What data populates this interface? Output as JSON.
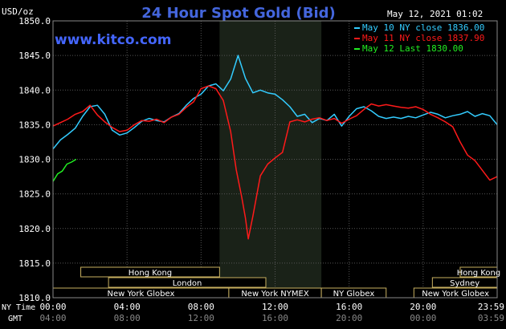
{
  "chart_data": {
    "type": "line",
    "title": "24 Hour Spot Gold (Bid)",
    "ylabel": "USD/oz",
    "watermark": "www.kitco.com",
    "timestamp": "May 12, 2021 01:02",
    "ylim": [
      1810,
      1850
    ],
    "xlim": [
      0,
      24
    ],
    "y_ticks": [
      "1850.0",
      "1845.0",
      "1840.0",
      "1835.0",
      "1830.0",
      "1825.0",
      "1820.0",
      "1815.0",
      "1810.0"
    ],
    "y_tick_values": [
      1850,
      1845,
      1840,
      1835,
      1830,
      1825,
      1820,
      1815,
      1810
    ],
    "x_row1_label": "NY Time",
    "x_row2_label": "GMT",
    "x_ticks_ny": [
      "00:00",
      "04:00",
      "08:00",
      "12:00",
      "16:00",
      "20:00",
      "23:59"
    ],
    "x_ticks_gmt": [
      "04:00",
      "08:00",
      "12:00",
      "16:00",
      "20:00",
      "00:00",
      "03:59"
    ],
    "x_tick_hours": [
      0,
      4,
      8,
      12,
      16,
      20,
      24
    ],
    "highlight_region": [
      9,
      14.5
    ],
    "grid": true,
    "legend_position": "top-right",
    "series": [
      {
        "name": "May 10 NY close 1836.00",
        "color": "#33ccff",
        "points": [
          [
            0,
            1831.5
          ],
          [
            0.4,
            1832.8
          ],
          [
            0.8,
            1833.6
          ],
          [
            1.2,
            1834.5
          ],
          [
            1.6,
            1836.2
          ],
          [
            2.0,
            1837.6
          ],
          [
            2.4,
            1837.8
          ],
          [
            2.8,
            1836.5
          ],
          [
            3.2,
            1834.2
          ],
          [
            3.6,
            1833.5
          ],
          [
            4.0,
            1833.8
          ],
          [
            4.4,
            1834.6
          ],
          [
            4.8,
            1835.5
          ],
          [
            5.2,
            1835.9
          ],
          [
            5.6,
            1835.6
          ],
          [
            6.0,
            1835.4
          ],
          [
            6.4,
            1836.1
          ],
          [
            6.8,
            1836.6
          ],
          [
            7.2,
            1837.8
          ],
          [
            7.6,
            1838.8
          ],
          [
            8.0,
            1839.4
          ],
          [
            8.4,
            1840.6
          ],
          [
            8.8,
            1840.9
          ],
          [
            9.2,
            1839.9
          ],
          [
            9.6,
            1841.6
          ],
          [
            10.0,
            1845.0
          ],
          [
            10.4,
            1841.7
          ],
          [
            10.8,
            1839.6
          ],
          [
            11.2,
            1840.0
          ],
          [
            11.6,
            1839.6
          ],
          [
            12.0,
            1839.4
          ],
          [
            12.4,
            1838.6
          ],
          [
            12.8,
            1837.6
          ],
          [
            13.2,
            1836.2
          ],
          [
            13.6,
            1836.5
          ],
          [
            14.0,
            1835.3
          ],
          [
            14.4,
            1835.9
          ],
          [
            14.8,
            1835.6
          ],
          [
            15.2,
            1836.5
          ],
          [
            15.6,
            1834.8
          ],
          [
            16.0,
            1836.2
          ],
          [
            16.4,
            1837.3
          ],
          [
            16.8,
            1837.6
          ],
          [
            17.2,
            1837.0
          ],
          [
            17.6,
            1836.2
          ],
          [
            18.0,
            1835.9
          ],
          [
            18.4,
            1836.1
          ],
          [
            18.8,
            1835.9
          ],
          [
            19.2,
            1836.2
          ],
          [
            19.6,
            1836.0
          ],
          [
            20.0,
            1836.4
          ],
          [
            20.4,
            1836.8
          ],
          [
            20.8,
            1836.5
          ],
          [
            21.2,
            1836.0
          ],
          [
            21.6,
            1836.3
          ],
          [
            22.0,
            1836.5
          ],
          [
            22.4,
            1836.9
          ],
          [
            22.8,
            1836.2
          ],
          [
            23.2,
            1836.6
          ],
          [
            23.6,
            1836.3
          ],
          [
            24.0,
            1835.0
          ]
        ]
      },
      {
        "name": "May 11 NY close 1837.90",
        "color": "#ff1a1a",
        "points": [
          [
            0,
            1834.8
          ],
          [
            0.4,
            1835.3
          ],
          [
            0.8,
            1835.8
          ],
          [
            1.2,
            1836.5
          ],
          [
            1.6,
            1836.9
          ],
          [
            2.0,
            1837.8
          ],
          [
            2.4,
            1836.4
          ],
          [
            2.8,
            1835.4
          ],
          [
            3.2,
            1834.6
          ],
          [
            3.6,
            1834.0
          ],
          [
            4.0,
            1834.2
          ],
          [
            4.4,
            1835.0
          ],
          [
            4.8,
            1835.6
          ],
          [
            5.2,
            1835.5
          ],
          [
            5.6,
            1835.8
          ],
          [
            6.0,
            1835.3
          ],
          [
            6.4,
            1836.1
          ],
          [
            6.8,
            1836.5
          ],
          [
            7.2,
            1837.5
          ],
          [
            7.6,
            1838.3
          ],
          [
            8.0,
            1840.2
          ],
          [
            8.4,
            1840.6
          ],
          [
            8.8,
            1840.2
          ],
          [
            9.2,
            1838.5
          ],
          [
            9.6,
            1834.0
          ],
          [
            9.9,
            1828.5
          ],
          [
            10.2,
            1824.5
          ],
          [
            10.4,
            1821.5
          ],
          [
            10.55,
            1818.5
          ],
          [
            10.8,
            1821.8
          ],
          [
            11.2,
            1827.6
          ],
          [
            11.6,
            1829.3
          ],
          [
            12.0,
            1830.2
          ],
          [
            12.4,
            1831.0
          ],
          [
            12.8,
            1835.4
          ],
          [
            13.2,
            1835.7
          ],
          [
            13.6,
            1835.4
          ],
          [
            14.0,
            1835.8
          ],
          [
            14.4,
            1836.0
          ],
          [
            14.8,
            1835.6
          ],
          [
            15.2,
            1835.9
          ],
          [
            15.6,
            1835.2
          ],
          [
            16.0,
            1835.8
          ],
          [
            16.4,
            1836.3
          ],
          [
            16.8,
            1837.2
          ],
          [
            17.2,
            1838.0
          ],
          [
            17.6,
            1837.7
          ],
          [
            18.0,
            1837.9
          ],
          [
            18.4,
            1837.7
          ],
          [
            18.8,
            1837.5
          ],
          [
            19.2,
            1837.4
          ],
          [
            19.6,
            1837.6
          ],
          [
            20.0,
            1837.2
          ],
          [
            20.4,
            1836.5
          ],
          [
            20.8,
            1836.0
          ],
          [
            21.2,
            1835.4
          ],
          [
            21.6,
            1834.7
          ],
          [
            22.0,
            1832.5
          ],
          [
            22.4,
            1830.6
          ],
          [
            22.8,
            1829.8
          ],
          [
            23.2,
            1828.4
          ],
          [
            23.6,
            1827.0
          ],
          [
            24.0,
            1827.5
          ]
        ]
      },
      {
        "name": "May 12 Last 1830.00",
        "color": "#22ee22",
        "points": [
          [
            0,
            1826.8
          ],
          [
            0.25,
            1827.9
          ],
          [
            0.5,
            1828.3
          ],
          [
            0.75,
            1829.3
          ],
          [
            1.0,
            1829.6
          ],
          [
            1.25,
            1830.0
          ]
        ]
      }
    ],
    "sessions": [
      {
        "row": 1,
        "label": "Hong Kong",
        "start": 1.5,
        "end": 9.0
      },
      {
        "row": 1,
        "label": "Hong Kong",
        "start": 22.0,
        "end": 24.0
      },
      {
        "row": 2,
        "label": "London",
        "start": 3.0,
        "end": 11.5
      },
      {
        "row": 2,
        "label": "Sydney",
        "start": 20.5,
        "end": 24.0
      },
      {
        "row": 3,
        "label": "New York Globex",
        "start": 0,
        "end": 9.5
      },
      {
        "row": 3,
        "label": "New York NYMEX",
        "start": 9.5,
        "end": 14.5
      },
      {
        "row": 3,
        "label": "NY Globex",
        "start": 14.5,
        "end": 18.0
      },
      {
        "row": 3,
        "label": "New York Globex",
        "start": 19.5,
        "end": 24.0
      }
    ]
  }
}
